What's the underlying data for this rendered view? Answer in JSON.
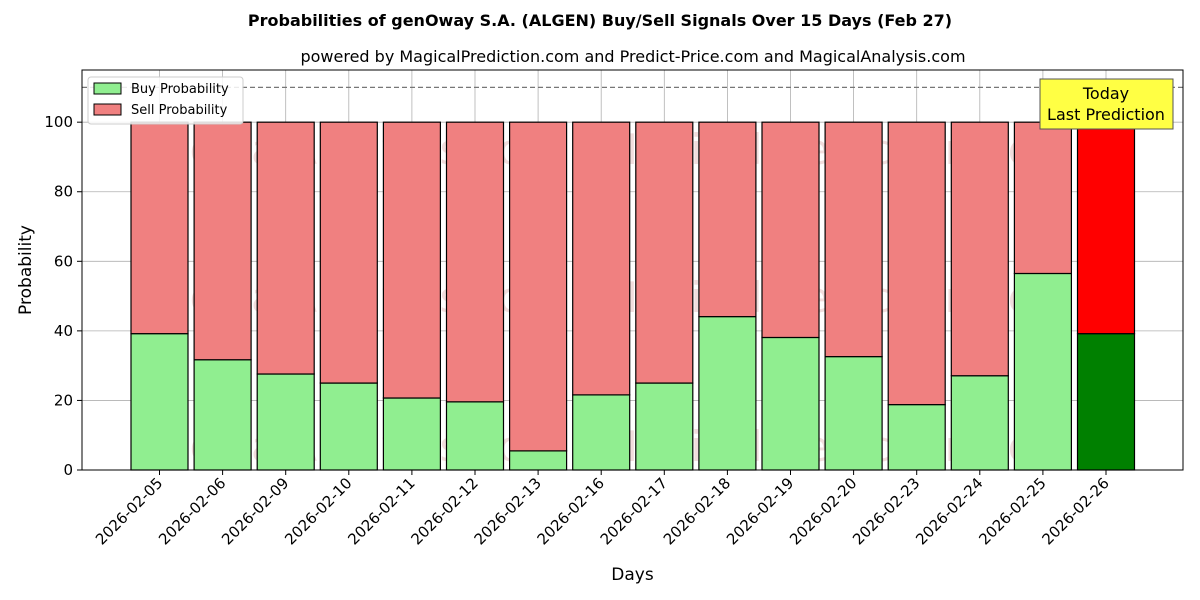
{
  "chart_data": {
    "type": "bar",
    "stacked": true,
    "title": "Probabilities of genOway S.A. (ALGEN) Buy/Sell Signals Over 15 Days (Feb 27)",
    "subtitle": "powered by MagicalPrediction.com and Predict-Price.com and MagicalAnalysis.com",
    "xlabel": "Days",
    "ylabel": "Probability",
    "ylim": [
      0,
      115
    ],
    "yticks": [
      "0",
      "20",
      "40",
      "60",
      "80",
      "100"
    ],
    "grid": true,
    "legend_position": "top-left",
    "reference_line": 110,
    "categories": [
      "2026-02-05",
      "2026-02-06",
      "2026-02-09",
      "2026-02-10",
      "2026-02-11",
      "2026-02-12",
      "2026-02-13",
      "2026-02-16",
      "2026-02-17",
      "2026-02-18",
      "2026-02-19",
      "2026-02-20",
      "2026-02-23",
      "2026-02-24",
      "2026-02-25",
      "2026-02-26"
    ],
    "series": [
      {
        "name": "Buy Probability",
        "color": "#90ee90",
        "highlight_color": "#008000",
        "values": [
          39.2,
          31.7,
          27.6,
          25.0,
          20.7,
          19.6,
          5.5,
          21.6,
          25.0,
          44.1,
          38.1,
          32.6,
          18.8,
          27.1,
          56.5,
          39.2
        ]
      },
      {
        "name": "Sell Probability",
        "color": "#f08080",
        "highlight_color": "#ff0000",
        "values": [
          60.8,
          68.3,
          72.4,
          75.0,
          79.3,
          80.4,
          94.5,
          78.4,
          75.0,
          55.9,
          61.9,
          67.4,
          81.2,
          72.9,
          43.5,
          60.8
        ]
      }
    ],
    "annotation": {
      "line1": "Today",
      "line2": "Last Prediction",
      "color": "#ffff44"
    },
    "watermarks": [
      "MagicalAnalysis.com",
      "MagicalPrediction.com"
    ]
  }
}
